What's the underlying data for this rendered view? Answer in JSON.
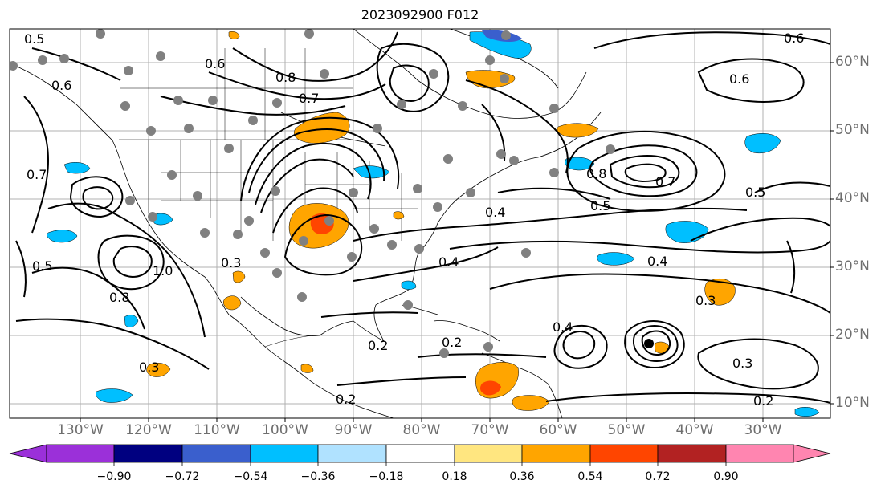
{
  "title": "2023092900 F012",
  "latitude_labels": [
    "60°N",
    "50°N",
    "40°N",
    "30°N",
    "20°N",
    "10°N"
  ],
  "longitude_labels": [
    "130°W",
    "120°W",
    "110°W",
    "100°W",
    "90°W",
    "80°W",
    "70°W",
    "60°W",
    "50°W",
    "40°W",
    "30°W"
  ],
  "colorbar": {
    "ticks": [
      "−0.90",
      "−0.72",
      "−0.54",
      "−0.36",
      "−0.18",
      "0.18",
      "0.36",
      "0.54",
      "0.72",
      "0.90"
    ],
    "colors": [
      "#9b30d9",
      "#000080",
      "#3a5fcd",
      "#00bfff",
      "#b0e2ff",
      "#ffffff",
      "#ffe680",
      "#ffa500",
      "#ff4500",
      "#b22222",
      "#ff85b0"
    ]
  },
  "contour_labels": [
    "0.5",
    "0.6",
    "0.7",
    "0.8",
    "0.5",
    "0.4",
    "0.3",
    "0.2",
    "0.6",
    "0.8",
    "0.7",
    "0.5",
    "0.4",
    "0.3",
    "0.2",
    "0.6",
    "0.5",
    "0.4",
    "0.3",
    "0.2",
    "0.4",
    "0.7",
    "0.8",
    "1.0",
    "0.6",
    "0.3",
    "0.2"
  ],
  "map": {
    "fill_colors": {
      "orange": "#ffa500",
      "red": "#ff4500",
      "blue": "#00bfff",
      "lightblue": "#b0e2ff"
    },
    "station_color": "#808080"
  }
}
